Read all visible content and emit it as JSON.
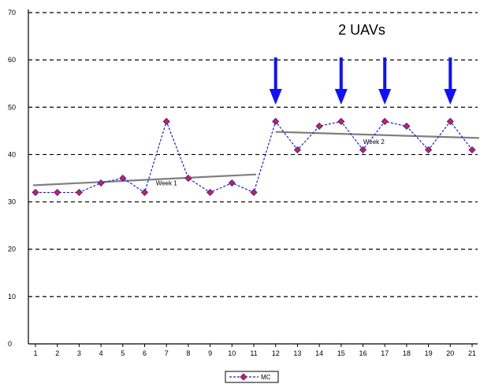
{
  "chart_data": {
    "type": "line",
    "title": "2 UAVs",
    "categories": [
      "1",
      "2",
      "3",
      "4",
      "5",
      "6",
      "7",
      "8",
      "9",
      "10",
      "11",
      "12",
      "13",
      "14",
      "15",
      "16",
      "17",
      "18",
      "19",
      "20",
      "21"
    ],
    "y_ticks": [
      "0",
      "10",
      "20",
      "30",
      "40",
      "50",
      "60",
      "70"
    ],
    "ylim": [
      0,
      70
    ],
    "series": [
      {
        "name": "MC",
        "values": [
          32,
          32,
          32,
          34,
          35,
          32,
          47,
          35,
          32,
          34,
          32,
          47,
          41,
          46,
          47,
          41,
          47,
          46,
          41,
          47,
          41
        ],
        "color": "#1f1fd6",
        "marker_color": "#d31f3f"
      }
    ],
    "trend_lines": [
      {
        "label": "Week 1",
        "from_category": "1",
        "to_category": "11",
        "start": 33.5,
        "end": 35.8,
        "label_category": "7",
        "label_value": 33.5,
        "color": "#7f7f7f"
      },
      {
        "label": "Week 2",
        "from_category": "12",
        "to_category": "21",
        "start": 44.8,
        "end": 43.5,
        "label_category": "16.5",
        "label_value": 42.2,
        "color": "#7f7f7f"
      }
    ],
    "arrows": [
      {
        "category": "12"
      },
      {
        "category": "15"
      },
      {
        "category": "17"
      },
      {
        "category": "20"
      }
    ],
    "legend": {
      "entry": "MC",
      "position": "bottom-center"
    },
    "grid": "dashed-horizontal"
  }
}
